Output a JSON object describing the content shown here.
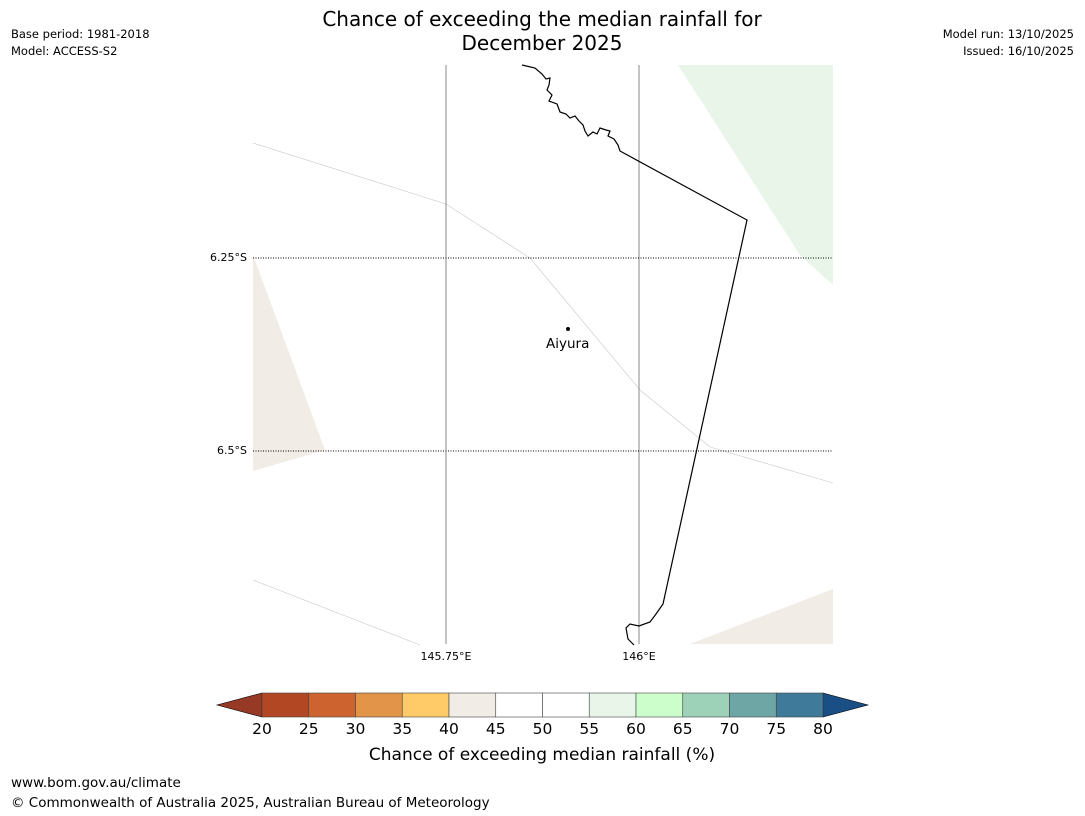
{
  "title": {
    "line1": "Chance of exceeding the median rainfall for",
    "line2": "December 2025"
  },
  "header": {
    "base_period": "Base period: 1981-2018",
    "model": "Model: ACCESS-S2",
    "model_run": "Model run: 13/10/2025",
    "issued": "Issued: 16/10/2025"
  },
  "map": {
    "lat_ticks": [
      "6.25°S",
      "6.5°S"
    ],
    "lon_ticks": [
      "145.75°E",
      "146°E"
    ],
    "place": {
      "name": "Aiyura"
    },
    "colors": {
      "category_40_45": "#f1ece5",
      "category_55_60": "#e8f5e8",
      "coastline": "#000000",
      "gridline": "#888888"
    }
  },
  "colorbar": {
    "title": "Chance of exceeding median rainfall (%)",
    "ticks": [
      "20",
      "25",
      "30",
      "35",
      "40",
      "45",
      "50",
      "55",
      "60",
      "65",
      "70",
      "75",
      "80"
    ],
    "under_color": "#973a25",
    "over_color": "#1a4f86",
    "colors": [
      "#b24724",
      "#cd6430",
      "#e29548",
      "#fecb68",
      "#f1ece5",
      "#ffffff",
      "#ffffff",
      "#e8f5e8",
      "#ccfecc",
      "#9dd1b8",
      "#6ea6a6",
      "#407a9a"
    ]
  },
  "footer": {
    "url": "www.bom.gov.au/climate",
    "copyright": "© Commonwealth of Australia 2025, Australian Bureau of Meteorology"
  }
}
